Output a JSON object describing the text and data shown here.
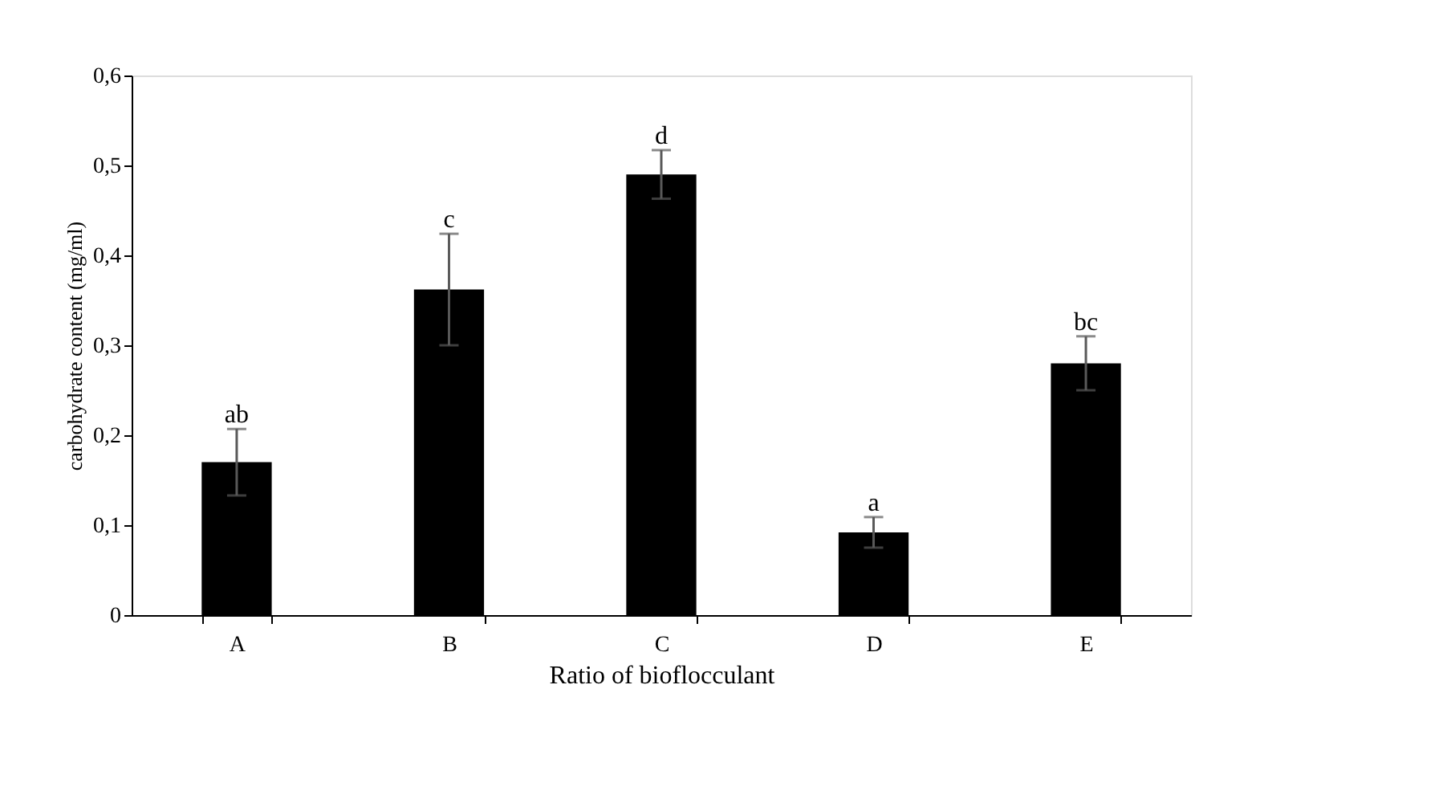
{
  "chart_data": {
    "type": "bar",
    "xlabel": "Ratio of bioflocculant",
    "ylabel": "carbohydrate content  (mg/ml)",
    "categories": [
      "A",
      "B",
      "C",
      "D",
      "E"
    ],
    "values": [
      0.17,
      0.362,
      0.49,
      0.092,
      0.28
    ],
    "errors": [
      0.037,
      0.062,
      0.027,
      0.017,
      0.03
    ],
    "color": "#000000",
    "ylim": [
      0,
      0.6
    ],
    "yticks": [
      {
        "value": 0,
        "label": "0"
      },
      {
        "value": 0.1,
        "label": "0,1"
      },
      {
        "value": 0.2,
        "label": "0,2"
      },
      {
        "value": 0.3,
        "label": "0,3"
      },
      {
        "value": 0.4,
        "label": "0,4"
      },
      {
        "value": 0.5,
        "label": "0,5"
      },
      {
        "value": 0.6,
        "label": "0,6"
      }
    ],
    "grid": false,
    "annotations": [
      {
        "text": "ab",
        "x": "A",
        "y": 0.207
      },
      {
        "text": "c",
        "x": "B",
        "y": 0.424
      },
      {
        "text": "d",
        "x": "C",
        "y": 0.517
      },
      {
        "text": "a",
        "x": "D",
        "y": 0.109
      },
      {
        "text": "bc",
        "x": "E",
        "y": 0.31
      }
    ]
  }
}
